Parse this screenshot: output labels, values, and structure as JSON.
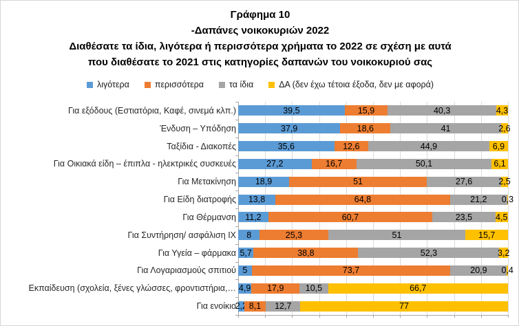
{
  "header": {
    "title_lines": [
      "Γράφημα 10",
      "-Δαπάνες νοικοκυριών 2022",
      "Διαθέσατε τα ίδια, λιγότερα ή περισσότερα χρήματα το 2022 σε σχέση με αυτά",
      "που διαθέσατε το 2021 στις κατηγορίες δαπανών του νοικοκυριού σας"
    ]
  },
  "colors": {
    "less_blue": "#5B9BD5",
    "more_orange": "#ED7D31",
    "same_gray": "#A5A5A5",
    "na_yellow": "#FFC000",
    "gridline": "#D9D9D9",
    "axis": "#A6A6A6",
    "frame_border": "#D6D6D6"
  },
  "chart_data": {
    "type": "bar",
    "stacked": true,
    "orientation": "horizontal",
    "title": "Γράφημα 10 -Δαπάνες νοικοκυριών 2022",
    "subtitle": "Διαθέσατε τα ίδια, λιγότερα ή περισσότερα χρήματα το 2022 σε σχέση με αυτά που διαθέσατε το 2021 στις κατηγορίες δαπανών του νοικοκυριού σας",
    "legend_position": "top",
    "grid": true,
    "xlim": [
      0,
      100
    ],
    "gridline_step": 10,
    "value_format": "decimal-comma",
    "xlabel": "",
    "ylabel": "",
    "categories": [
      "Για εξόδους (Εστιατόρια, Καφέ, σινεμά κλπ.)",
      "Ένδυση – Υπόδηση",
      "Ταξίδια - Διακοπές",
      "Για Οικιακά είδη – έπιπλα - ηλεκτρικές συσκευές",
      "Για Μετακίνηση",
      "Για Είδη διατροφής",
      "Για Θέρμανση",
      "Για Συντήρηση/ ασφάλιση ΙΧ",
      "Για Υγεία – φάρμακα",
      "Για Λογαριασμούς σπιτιού",
      "Εκπαίδευση (σχολεία, ξένες γλώσσες, φροντιστήρια,…",
      "Για ενοίκιο"
    ],
    "series": [
      {
        "name": "λιγότερα",
        "color": "#5B9BD5",
        "values": [
          39.5,
          37.9,
          35.6,
          27.2,
          18.9,
          13.8,
          11.2,
          8,
          5.7,
          5,
          4.9,
          2.2
        ]
      },
      {
        "name": "περισσότερα",
        "color": "#ED7D31",
        "values": [
          15.9,
          18.6,
          12.6,
          16.7,
          51,
          64.8,
          60.7,
          25.3,
          38.8,
          73.7,
          17.9,
          8.1
        ]
      },
      {
        "name": "τα ίδια",
        "color": "#A5A5A5",
        "values": [
          40.3,
          41,
          44.9,
          50.1,
          27.6,
          21.2,
          23.5,
          51,
          52.3,
          20.9,
          10.5,
          12.7
        ]
      },
      {
        "name": "ΔΑ (δεν έχω τέτοια έξοδα, δεν με αφορά)",
        "color": "#FFC000",
        "values": [
          4.3,
          2.6,
          6.9,
          6.1,
          2.5,
          0.3,
          4.5,
          15.7,
          3.2,
          0.4,
          66.7,
          77
        ]
      }
    ]
  }
}
